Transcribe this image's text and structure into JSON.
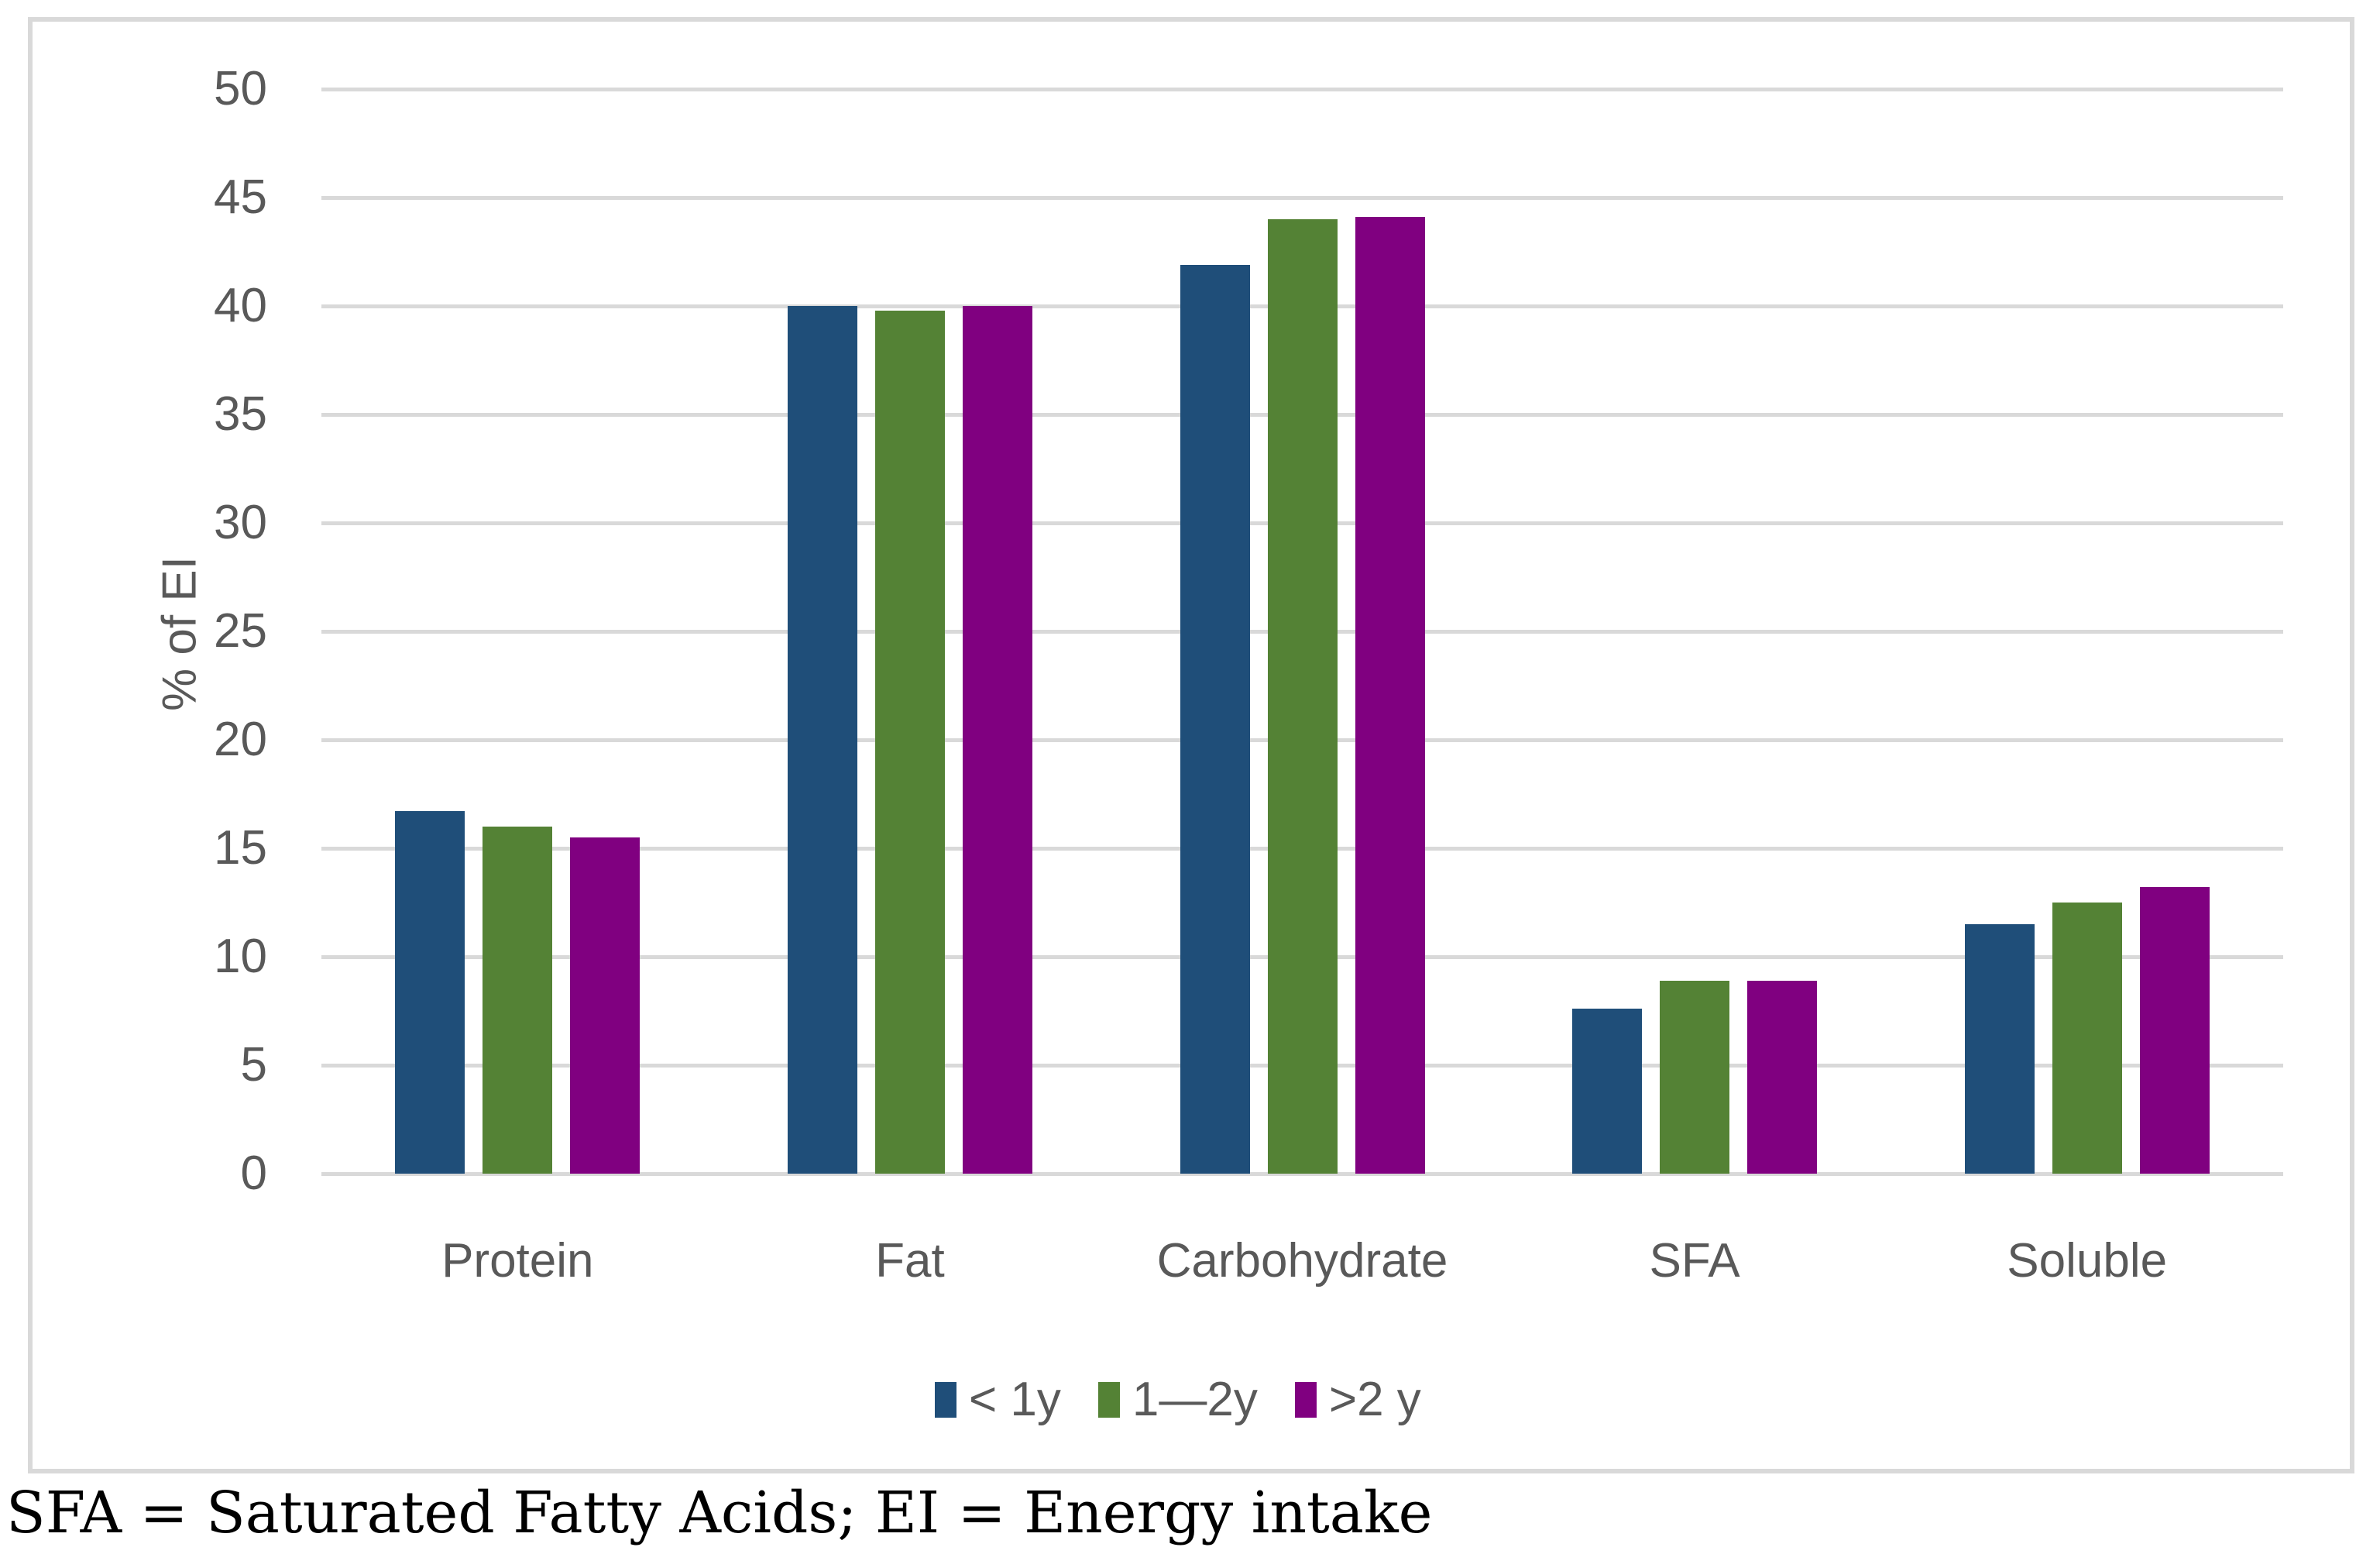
{
  "chart_data": {
    "type": "bar",
    "title": "",
    "xlabel": "",
    "ylabel": "% of EI",
    "ylim": [
      0,
      50
    ],
    "ytick_step": 5,
    "grid": true,
    "legend_position": "bottom",
    "categories": [
      "Protein",
      "Fat",
      "Carbohydrate",
      "SFA",
      "Soluble"
    ],
    "series": [
      {
        "name": "< 1y",
        "color": "#1F4E79",
        "values": [
          16.7,
          40.0,
          41.9,
          7.6,
          11.5
        ]
      },
      {
        "name": "1—2y",
        "color": "#548235",
        "values": [
          16.0,
          39.8,
          44.0,
          8.9,
          12.5
        ]
      },
      {
        "name": ">2 y",
        "color": "#800080",
        "values": [
          15.5,
          40.0,
          44.1,
          8.9,
          13.2
        ]
      }
    ]
  },
  "caption": "SFA = Saturated Fatty Acids; EI = Energy intake",
  "colors": {
    "axis_text": "#595959",
    "gridline": "#D9D9D9",
    "frame_border": "#D9D9D9",
    "background": "#FFFFFF"
  }
}
